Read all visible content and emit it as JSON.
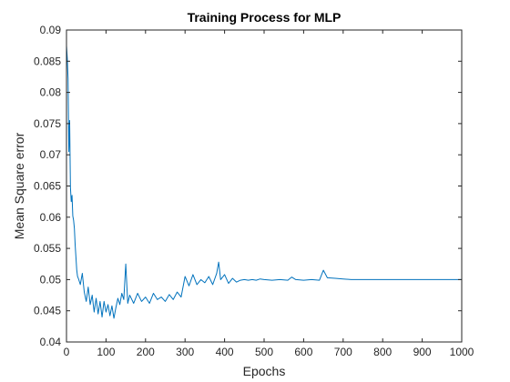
{
  "chart_data": {
    "type": "line",
    "title": "Training Process for MLP",
    "xlabel": "Epochs",
    "ylabel": "Mean Square error",
    "xlim": [
      0,
      1000
    ],
    "ylim": [
      0.04,
      0.09
    ],
    "x_ticks": [
      "0",
      "100",
      "200",
      "300",
      "400",
      "500",
      "600",
      "700",
      "800",
      "900",
      "1000"
    ],
    "y_ticks": [
      "0.04",
      "0.045",
      "0.05",
      "0.055",
      "0.06",
      "0.065",
      "0.07",
      "0.075",
      "0.08",
      "0.085",
      "0.09"
    ],
    "grid": false,
    "line_color": "#0072BD",
    "series": [
      {
        "x": [
          0,
          2,
          4,
          6,
          8,
          10,
          12,
          14,
          16,
          18,
          20,
          22,
          24,
          26,
          28,
          30,
          35,
          40,
          45,
          50,
          55,
          60,
          65,
          70,
          75,
          80,
          85,
          90,
          95,
          100,
          105,
          110,
          115,
          120,
          125,
          130,
          135,
          140,
          145,
          150,
          155,
          160,
          170,
          180,
          190,
          200,
          210,
          220,
          230,
          240,
          250,
          260,
          270,
          280,
          290,
          300,
          310,
          320,
          330,
          340,
          350,
          360,
          370,
          380,
          385,
          390,
          400,
          410,
          420,
          430,
          440,
          450,
          460,
          470,
          480,
          490,
          500,
          520,
          540,
          560,
          570,
          580,
          600,
          620,
          640,
          650,
          660,
          680,
          700,
          720,
          750,
          800,
          850,
          900,
          950,
          1000
        ],
        "y": [
          0.0875,
          0.0855,
          0.0822,
          0.0705,
          0.0755,
          0.0648,
          0.0625,
          0.0635,
          0.0602,
          0.0595,
          0.0582,
          0.0555,
          0.0535,
          0.0515,
          0.0505,
          0.0502,
          0.0492,
          0.051,
          0.048,
          0.0465,
          0.0488,
          0.046,
          0.0475,
          0.0448,
          0.047,
          0.0445,
          0.0465,
          0.044,
          0.0465,
          0.0448,
          0.046,
          0.0442,
          0.0458,
          0.0438,
          0.0455,
          0.047,
          0.046,
          0.0478,
          0.0468,
          0.0525,
          0.0462,
          0.0475,
          0.0462,
          0.0478,
          0.0465,
          0.0472,
          0.0462,
          0.0478,
          0.0468,
          0.0472,
          0.0465,
          0.0476,
          0.0468,
          0.048,
          0.0472,
          0.0505,
          0.049,
          0.0508,
          0.0492,
          0.05,
          0.0495,
          0.0505,
          0.0492,
          0.051,
          0.0528,
          0.05,
          0.0508,
          0.0494,
          0.0502,
          0.0496,
          0.0499,
          0.05,
          0.0499,
          0.05,
          0.0499,
          0.0501,
          0.05,
          0.0499,
          0.05,
          0.0499,
          0.0504,
          0.05,
          0.0499,
          0.05,
          0.0499,
          0.0515,
          0.0503,
          0.0502,
          0.0501,
          0.05,
          0.05,
          0.05,
          0.05,
          0.05,
          0.05,
          0.05
        ]
      }
    ]
  }
}
